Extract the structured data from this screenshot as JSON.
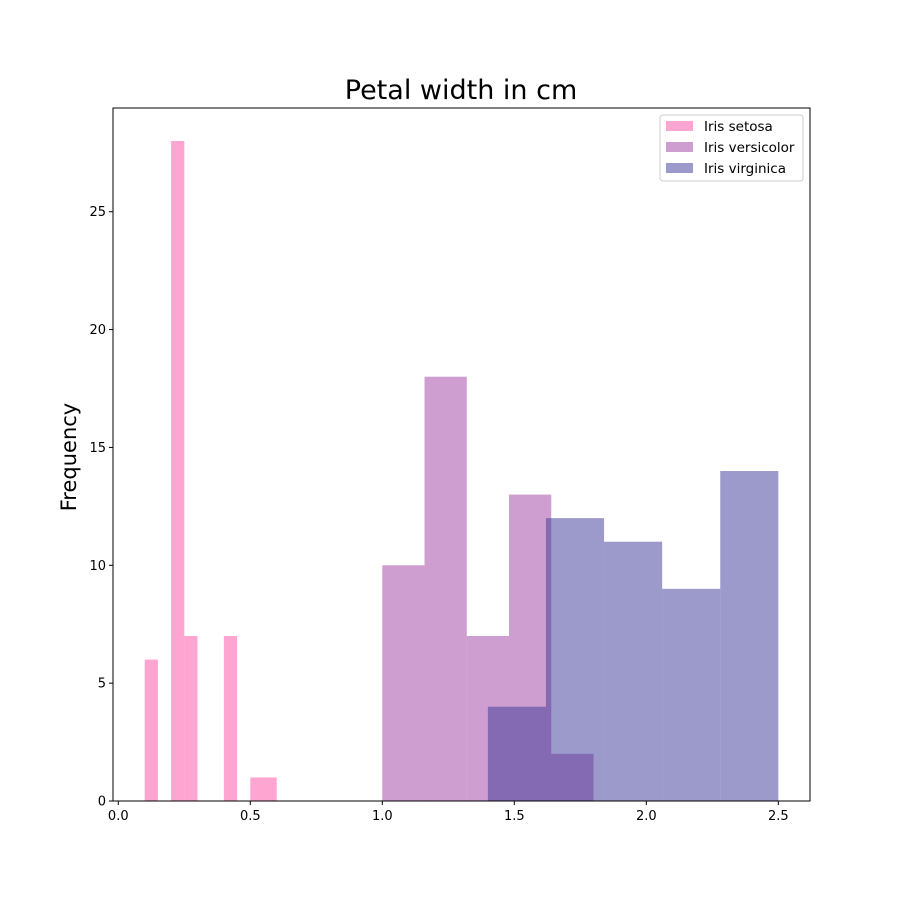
{
  "chart_data": {
    "type": "bar",
    "title": "Petal width in cm",
    "xlabel": "",
    "ylabel": "Frequency",
    "xlim": [
      -0.02,
      2.62
    ],
    "ylim": [
      0,
      29.4
    ],
    "xticks": [
      0.0,
      0.5,
      1.0,
      1.5,
      2.0,
      2.5
    ],
    "xtick_labels": [
      "0.0",
      "0.5",
      "1.0",
      "1.5",
      "2.0",
      "2.5"
    ],
    "yticks": [
      0,
      5,
      10,
      15,
      20,
      25
    ],
    "ytick_labels": [
      "0",
      "5",
      "10",
      "15",
      "20",
      "25"
    ],
    "grid": false,
    "legend_position": "top-right",
    "series": [
      {
        "name": "Iris setosa",
        "color": "#ff69b4",
        "opacity": 0.6,
        "bins": [
          {
            "x0": 0.1,
            "x1": 0.15,
            "value": 6
          },
          {
            "x0": 0.2,
            "x1": 0.25,
            "value": 28
          },
          {
            "x0": 0.25,
            "x1": 0.3,
            "value": 7
          },
          {
            "x0": 0.4,
            "x1": 0.45,
            "value": 7
          },
          {
            "x0": 0.5,
            "x1": 0.6,
            "value": 1
          }
        ]
      },
      {
        "name": "Iris versicolor",
        "color": "#9b3d9f",
        "opacity": 0.5,
        "bins": [
          {
            "x0": 1.0,
            "x1": 1.16,
            "value": 10
          },
          {
            "x0": 1.16,
            "x1": 1.32,
            "value": 18
          },
          {
            "x0": 1.32,
            "x1": 1.48,
            "value": 7
          },
          {
            "x0": 1.48,
            "x1": 1.64,
            "value": 13
          },
          {
            "x0": 1.64,
            "x1": 1.8,
            "value": 2
          }
        ]
      },
      {
        "name": "Iris virginica",
        "color": "#3a3597",
        "opacity": 0.5,
        "bins": [
          {
            "x0": 1.4,
            "x1": 1.62,
            "value": 4
          },
          {
            "x0": 1.62,
            "x1": 1.84,
            "value": 12
          },
          {
            "x0": 1.84,
            "x1": 2.06,
            "value": 11
          },
          {
            "x0": 2.06,
            "x1": 2.28,
            "value": 9
          },
          {
            "x0": 2.28,
            "x1": 2.5,
            "value": 14
          }
        ]
      }
    ]
  }
}
